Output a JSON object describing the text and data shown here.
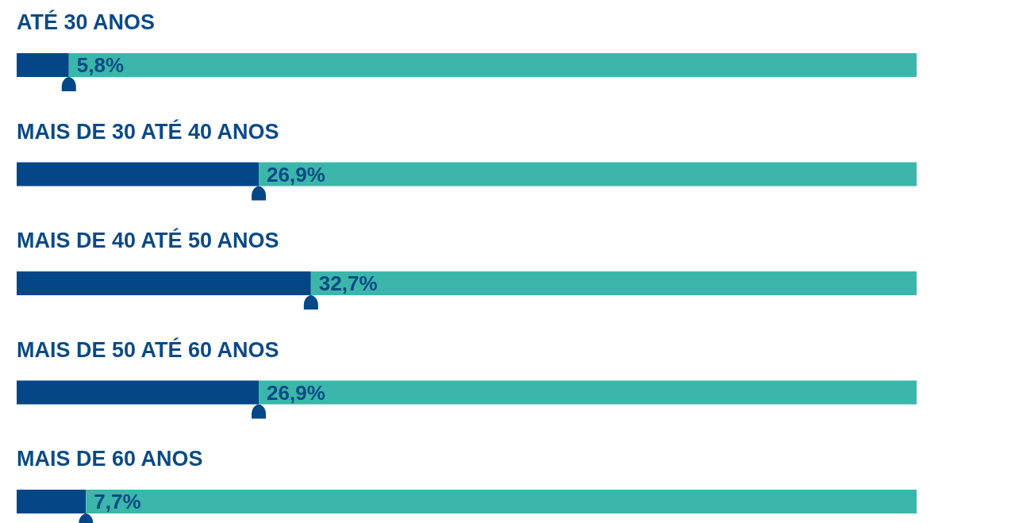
{
  "chart_data": {
    "type": "bar",
    "orientation": "horizontal",
    "stacked": true,
    "tick_labels": "y",
    "categories": [
      "ATÉ 30 ANOS",
      "MAIS DE 30 ATÉ 40 ANOS",
      "MAIS DE 40 ATÉ 50 ANOS",
      "MAIS DE 50 ATÉ 60 ANOS",
      "MAIS DE 60 ANOS"
    ],
    "xlim": [
      0,
      100
    ],
    "series": [
      {
        "color": "#034787",
        "values": [
          5.8,
          26.9,
          32.7,
          26.9,
          7.7
        ],
        "value_labels": [
          "5,8%",
          "26,9%",
          "32,7%",
          "26,9%",
          "7,7%"
        ]
      },
      {
        "color": "#3bb6aa",
        "values": [
          94.2,
          73.1,
          67.3,
          73.1,
          92.3
        ]
      }
    ]
  }
}
